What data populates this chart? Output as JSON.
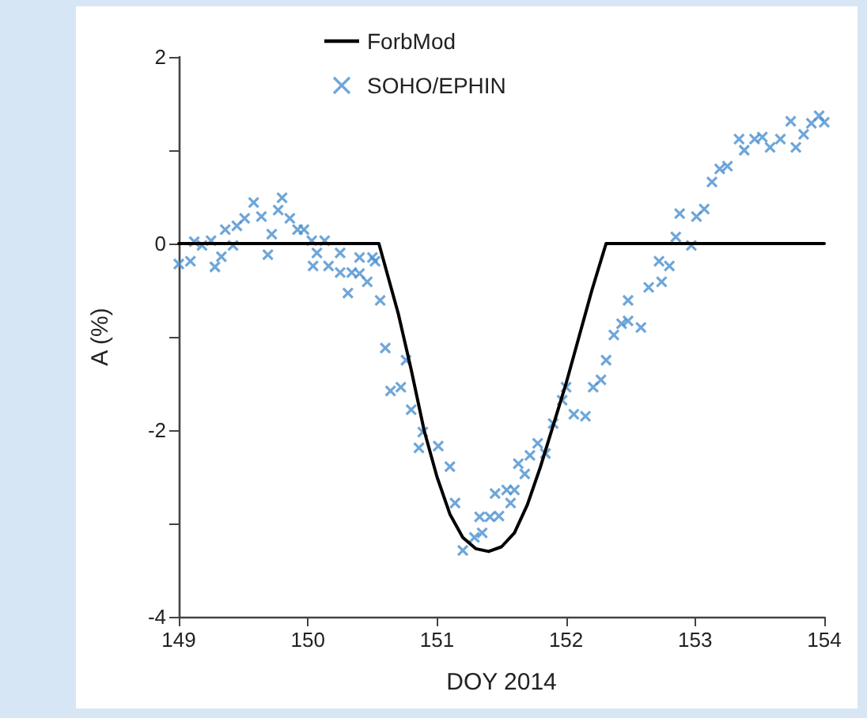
{
  "chart_data": {
    "type": "scatter",
    "xlabel": "DOY 2014",
    "ylabel": "A (%)",
    "xlim": [
      149,
      154
    ],
    "xticks": [
      149,
      150,
      151,
      152,
      153,
      154
    ],
    "ylim": [
      -4,
      2
    ],
    "yticks": [
      -4,
      {
        "value": -3,
        "label": null
      },
      -2,
      {
        "value": -1,
        "label": null
      },
      0,
      {
        "value": 1,
        "label": null
      },
      2
    ],
    "grid": false,
    "legend": "top",
    "series": [
      {
        "name": "ForbMod",
        "type": "line",
        "color": "#000000",
        "marker": "none",
        "line_style": "solid",
        "x": [
          149,
          150.55,
          150.7,
          150.8,
          150.9,
          151.0,
          151.1,
          151.2,
          151.3,
          151.4,
          151.5,
          151.6,
          151.7,
          151.8,
          151.9,
          152.0,
          152.1,
          152.2,
          152.31,
          154
        ],
        "values": [
          0,
          0,
          -0.75,
          -1.35,
          -2.0,
          -2.5,
          -2.9,
          -3.15,
          -3.27,
          -3.3,
          -3.25,
          -3.1,
          -2.8,
          -2.4,
          -1.95,
          -1.5,
          -1.0,
          -0.5,
          0,
          0
        ]
      },
      {
        "name": "SOHO/EPHIN",
        "color": "#4a90d0",
        "marker": "cross",
        "x": [
          149.0,
          149.09,
          149.12,
          149.18,
          149.25,
          149.28,
          149.33,
          149.36,
          149.42,
          149.45,
          149.51,
          149.58,
          149.64,
          149.69,
          149.72,
          149.77,
          149.8,
          149.86,
          149.92,
          149.97,
          150.03,
          150.07,
          150.13,
          150.04,
          150.16,
          150.25,
          150.25,
          150.31,
          150.34,
          150.4,
          150.4,
          150.46,
          150.5,
          150.52,
          150.56,
          150.6,
          150.64,
          150.72,
          150.76,
          150.8,
          150.89,
          150.86,
          151.01,
          151.1,
          151.14,
          151.2,
          151.29,
          151.35,
          151.33,
          151.41,
          151.48,
          151.45,
          151.54,
          151.6,
          151.57,
          151.63,
          151.68,
          151.72,
          151.78,
          151.84,
          151.9,
          151.97,
          152.0,
          152.06,
          152.15,
          152.21,
          152.27,
          152.31,
          152.37,
          152.43,
          152.48,
          152.58,
          152.48,
          152.64,
          152.74,
          152.72,
          152.8,
          152.85,
          152.97,
          152.88,
          153.01,
          153.07,
          153.13,
          153.19,
          153.25,
          153.34,
          153.38,
          153.46,
          153.52,
          153.58,
          153.66,
          153.74,
          153.78,
          153.84,
          153.9,
          153.96,
          154.0
        ],
        "values": [
          -0.22,
          -0.19,
          0.02,
          -0.02,
          0.03,
          -0.25,
          -0.14,
          0.15,
          -0.02,
          0.19,
          0.27,
          0.44,
          0.29,
          -0.12,
          0.1,
          0.36,
          0.49,
          0.27,
          0.15,
          0.15,
          0.03,
          -0.1,
          0.03,
          -0.24,
          -0.24,
          -0.1,
          -0.31,
          -0.53,
          -0.31,
          -0.15,
          -0.32,
          -0.41,
          -0.15,
          -0.19,
          -0.61,
          -1.12,
          -1.58,
          -1.54,
          -1.25,
          -1.78,
          -2.02,
          -2.19,
          -2.17,
          -2.39,
          -2.78,
          -3.29,
          -3.15,
          -3.1,
          -2.93,
          -2.93,
          -2.92,
          -2.68,
          -2.64,
          -2.64,
          -2.78,
          -2.36,
          -2.47,
          -2.27,
          -2.14,
          -2.25,
          -1.93,
          -1.68,
          -1.54,
          -1.83,
          -1.85,
          -1.54,
          -1.46,
          -1.25,
          -0.98,
          -0.86,
          -0.83,
          -0.9,
          -0.61,
          -0.47,
          -0.41,
          -0.19,
          -0.24,
          0.07,
          -0.02,
          0.32,
          0.29,
          0.37,
          0.66,
          0.8,
          0.83,
          1.12,
          1.0,
          1.12,
          1.14,
          1.03,
          1.12,
          1.31,
          1.03,
          1.17,
          1.29,
          1.37,
          1.3
        ]
      }
    ]
  }
}
